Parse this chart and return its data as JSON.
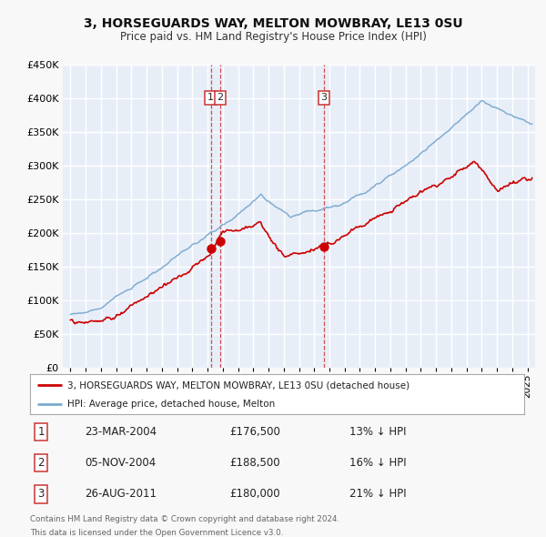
{
  "title": "3, HORSEGUARDS WAY, MELTON MOWBRAY, LE13 0SU",
  "subtitle": "Price paid vs. HM Land Registry's House Price Index (HPI)",
  "ylim": [
    0,
    450000
  ],
  "yticks": [
    0,
    50000,
    100000,
    150000,
    200000,
    250000,
    300000,
    350000,
    400000,
    450000
  ],
  "ytick_labels": [
    "£0",
    "£50K",
    "£100K",
    "£150K",
    "£200K",
    "£250K",
    "£300K",
    "£350K",
    "£400K",
    "£450K"
  ],
  "xlim_start": 1994.5,
  "xlim_end": 2025.5,
  "background_color": "#f8f8f8",
  "plot_bg_color": "#e8eef8",
  "grid_color": "#ffffff",
  "red_line_color": "#cc0000",
  "blue_line_color": "#7aaad0",
  "marker_color": "#cc0000",
  "vline_color": "#cc3333",
  "legend_label_red": "3, HORSEGUARDS WAY, MELTON MOWBRAY, LE13 0SU (detached house)",
  "legend_label_blue": "HPI: Average price, detached house, Melton",
  "transactions": [
    {
      "num": 1,
      "date_year": 2004.22,
      "price": 176500,
      "label": "1",
      "x_vline": 2004.22
    },
    {
      "num": 2,
      "date_year": 2004.84,
      "price": 188500,
      "label": "2",
      "x_vline": 2004.84
    },
    {
      "num": 3,
      "date_year": 2011.65,
      "price": 180000,
      "label": "3",
      "x_vline": 2011.65
    }
  ],
  "table_rows": [
    {
      "num": "1",
      "date": "23-MAR-2004",
      "price": "£176,500",
      "note": "13% ↓ HPI"
    },
    {
      "num": "2",
      "date": "05-NOV-2004",
      "price": "£188,500",
      "note": "16% ↓ HPI"
    },
    {
      "num": "3",
      "date": "26-AUG-2011",
      "price": "£180,000",
      "note": "21% ↓ HPI"
    }
  ],
  "footer1": "Contains HM Land Registry data © Crown copyright and database right 2024.",
  "footer2": "This data is licensed under the Open Government Licence v3.0."
}
